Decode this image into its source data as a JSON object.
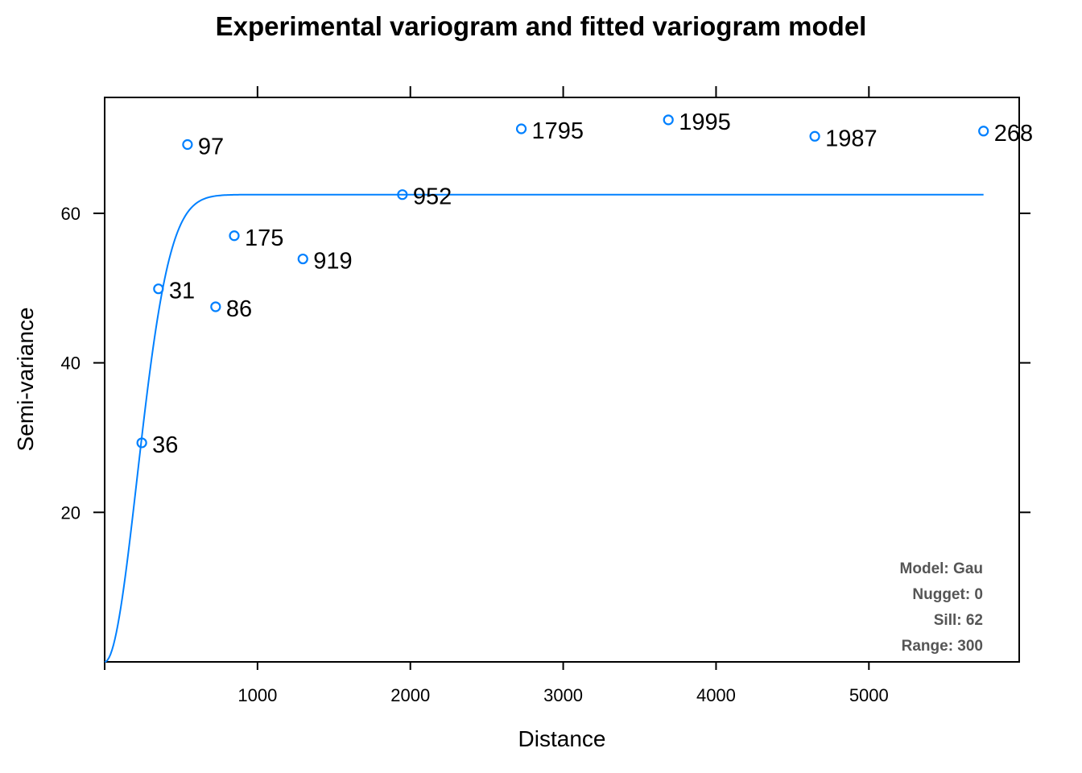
{
  "chart_data": {
    "type": "scatter",
    "title": "Experimental variogram and fitted variogram model",
    "xlabel": "Distance",
    "ylabel": "Semi-variance",
    "xlim": [
      0,
      6000
    ],
    "ylim": [
      0,
      75.5
    ],
    "x_ticks": [
      1000,
      2000,
      3000,
      4000,
      5000
    ],
    "y_ticks": [
      20,
      40,
      60
    ],
    "grid": false,
    "points": [
      {
        "x": 243,
        "y": 29.3,
        "label": "36"
      },
      {
        "x": 352,
        "y": 49.9,
        "label": "31"
      },
      {
        "x": 542,
        "y": 69.2,
        "label": "97"
      },
      {
        "x": 726,
        "y": 47.5,
        "label": "86"
      },
      {
        "x": 848,
        "y": 57.0,
        "label": "175"
      },
      {
        "x": 1297,
        "y": 53.9,
        "label": "919"
      },
      {
        "x": 1948,
        "y": 62.5,
        "label": "952"
      },
      {
        "x": 2726,
        "y": 71.3,
        "label": "1795"
      },
      {
        "x": 3688,
        "y": 72.5,
        "label": "1995"
      },
      {
        "x": 4646,
        "y": 70.3,
        "label": "1987"
      },
      {
        "x": 5750,
        "y": 71.0,
        "label": "268"
      }
    ],
    "model": {
      "type": "Gaussian",
      "nugget": 0,
      "sill": 62.5,
      "range": 300,
      "x_max": 5750
    },
    "annotations": [
      "Model: Gau",
      "Nugget: 0",
      "Sill: 62",
      "Range: 300"
    ],
    "colors": {
      "points": "#0080ff",
      "line": "#0080ff",
      "axes": "#000000",
      "annotation": "#555555"
    }
  }
}
